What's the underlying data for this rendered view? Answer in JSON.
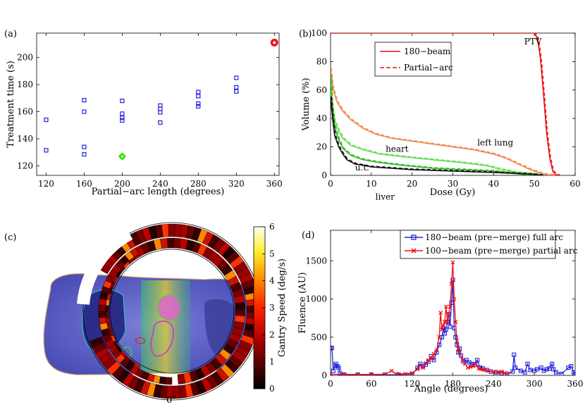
{
  "panels": {
    "a": {
      "label": "(a)"
    },
    "b": {
      "label": "(b)"
    },
    "c": {
      "label": "(c)"
    },
    "d": {
      "label": "(d)"
    }
  },
  "chart_data": [
    {
      "id": "a",
      "type": "scatter",
      "xlabel": "Partial−arc length (degrees)",
      "ylabel": "Treatment time (s)",
      "xlim": [
        110,
        365
      ],
      "ylim": [
        113,
        218
      ],
      "xticks": [
        120,
        160,
        200,
        240,
        280,
        320,
        360
      ],
      "yticks": [
        120,
        140,
        160,
        180,
        200
      ],
      "series": [
        {
          "marker": "square",
          "color": "#2222dd",
          "points": [
            [
              120,
              154
            ],
            [
              120,
              131.5
            ],
            [
              160,
              168.5
            ],
            [
              160,
              160
            ],
            [
              160,
              134
            ],
            [
              160,
              128.5
            ],
            [
              200,
              168
            ],
            [
              200,
              158.5
            ],
            [
              200,
              155.5
            ],
            [
              200,
              153.5
            ],
            [
              240,
              164.5
            ],
            [
              240,
              162
            ],
            [
              240,
              159.5
            ],
            [
              240,
              152
            ],
            [
              280,
              174.5
            ],
            [
              280,
              171.5
            ],
            [
              280,
              166
            ],
            [
              280,
              164
            ],
            [
              320,
              185
            ],
            [
              320,
              178
            ],
            [
              320,
              175
            ]
          ]
        },
        {
          "marker": "diamond",
          "color": "#33dd11",
          "points": [
            [
              200,
              127
            ]
          ]
        },
        {
          "marker": "circle",
          "color": "#ee1111",
          "points": [
            [
              360,
              211
            ]
          ]
        }
      ]
    },
    {
      "id": "b",
      "type": "line",
      "xlabel": "Dose (Gy)",
      "ylabel": "Volume (%)",
      "xlim": [
        0,
        60
      ],
      "ylim": [
        0,
        100
      ],
      "xticks": [
        0,
        10,
        20,
        30,
        40,
        50,
        60
      ],
      "yticks": [
        0,
        20,
        40,
        60,
        80,
        100
      ],
      "legend": {
        "position": "top-left",
        "entries": [
          {
            "label": "180−beam",
            "style": "solid",
            "color": "#ee1111"
          },
          {
            "label": "Partial−arc",
            "style": "dashed",
            "color": "#ee1111"
          }
        ]
      },
      "annotations": [
        {
          "text": "PTV",
          "x": 47.5,
          "y": 92
        },
        {
          "text": "left lung",
          "x": 36,
          "y": 21
        },
        {
          "text": "heart",
          "x": 13.5,
          "y": 16.5
        },
        {
          "text": "u.t.",
          "x": 6,
          "y": 3.5
        },
        {
          "text": "liver",
          "x": 11,
          "y": -17
        }
      ],
      "curves": [
        {
          "name": "PTV",
          "color": "#ee1111",
          "points": [
            [
              0,
              100
            ],
            [
              50,
              100
            ],
            [
              50.8,
              96
            ],
            [
              51.5,
              82
            ],
            [
              52.3,
              55
            ],
            [
              53,
              30
            ],
            [
              53.8,
              12
            ],
            [
              54.5,
              3
            ],
            [
              55.2,
              0.5
            ],
            [
              56,
              0
            ]
          ]
        },
        {
          "name": "left lung",
          "color": "#f08a4b",
          "points": [
            [
              0,
              75
            ],
            [
              0.5,
              62
            ],
            [
              1.5,
              52
            ],
            [
              3,
              45
            ],
            [
              5,
              39
            ],
            [
              8,
              33
            ],
            [
              11,
              29
            ],
            [
              15,
              26
            ],
            [
              20,
              24
            ],
            [
              25,
              22
            ],
            [
              30,
              20
            ],
            [
              35,
              18
            ],
            [
              40,
              15
            ],
            [
              43,
              12
            ],
            [
              46,
              8
            ],
            [
              49,
              4
            ],
            [
              51,
              2
            ],
            [
              53,
              0.5
            ],
            [
              55,
              0
            ]
          ]
        },
        {
          "name": "heart",
          "color": "#66dd55",
          "points": [
            [
              0,
              60
            ],
            [
              0.5,
              45
            ],
            [
              1,
              38
            ],
            [
              2,
              31
            ],
            [
              3,
              26
            ],
            [
              5,
              21
            ],
            [
              8,
              18
            ],
            [
              12,
              15
            ],
            [
              18,
              13
            ],
            [
              25,
              11
            ],
            [
              32,
              9
            ],
            [
              38,
              7
            ],
            [
              42,
              4
            ],
            [
              46,
              2
            ],
            [
              50,
              1
            ],
            [
              52,
              0
            ]
          ]
        },
        {
          "name": "liver",
          "color": "#33bb22",
          "points": [
            [
              0,
              70
            ],
            [
              0.4,
              48
            ],
            [
              1,
              34
            ],
            [
              2,
              25
            ],
            [
              3,
              19
            ],
            [
              5,
              14
            ],
            [
              8,
              11
            ],
            [
              12,
              9
            ],
            [
              18,
              7
            ],
            [
              25,
              5
            ],
            [
              32,
              4
            ],
            [
              40,
              3
            ],
            [
              46,
              1
            ],
            [
              50,
              0
            ]
          ]
        },
        {
          "name": "u.t.",
          "color": "#111111",
          "points": [
            [
              0,
              55
            ],
            [
              0.5,
              40
            ],
            [
              1,
              28
            ],
            [
              2,
              20
            ],
            [
              3,
              15
            ],
            [
              4,
              11
            ],
            [
              6,
              8
            ],
            [
              10,
              6
            ],
            [
              15,
              5
            ],
            [
              20,
              4
            ],
            [
              30,
              3
            ],
            [
              40,
              2
            ],
            [
              48,
              1
            ],
            [
              52,
              0
            ]
          ]
        }
      ]
    },
    {
      "id": "c",
      "type": "heatmap",
      "colorbar_label": "Gantry Speed (deg/s)",
      "colorbar_ticks": [
        0,
        1,
        2,
        3,
        4,
        5,
        6
      ],
      "angle_label": "0",
      "angle_unit": "o"
    },
    {
      "id": "d",
      "type": "line",
      "xlabel": "Angle (degrees)",
      "ylabel": "Fluence (AU)",
      "xlim": [
        0,
        360
      ],
      "ylim": [
        0,
        1900
      ],
      "xticks": [
        0,
        60,
        120,
        180,
        240,
        300,
        360
      ],
      "yticks": [
        0,
        500,
        1000,
        1500
      ],
      "legend": {
        "position": "top-center",
        "entries": [
          {
            "label": "180−beam (pre−merge) full arc",
            "marker": "square",
            "color": "#2222dd"
          },
          {
            "label": "100−beam (pre−merge) partial arc",
            "marker": "x",
            "color": "#ee1111"
          }
        ]
      },
      "series": [
        {
          "name": "180−beam (pre−merge) full arc",
          "color": "#2222dd",
          "marker": "square",
          "points": [
            [
              0,
              350
            ],
            [
              2,
              360
            ],
            [
              4,
              60
            ],
            [
              6,
              130
            ],
            [
              8,
              150
            ],
            [
              10,
              120
            ],
            [
              12,
              100
            ],
            [
              14,
              30
            ],
            [
              20,
              10
            ],
            [
              40,
              10
            ],
            [
              60,
              10
            ],
            [
              80,
              8
            ],
            [
              100,
              10
            ],
            [
              120,
              15
            ],
            [
              128,
              100
            ],
            [
              132,
              150
            ],
            [
              136,
              120
            ],
            [
              140,
              140
            ],
            [
              144,
              180
            ],
            [
              148,
              250
            ],
            [
              152,
              200
            ],
            [
              156,
              300
            ],
            [
              160,
              400
            ],
            [
              164,
              500
            ],
            [
              166,
              620
            ],
            [
              168,
              550
            ],
            [
              170,
              600
            ],
            [
              172,
              700
            ],
            [
              174,
              800
            ],
            [
              176,
              640
            ],
            [
              178,
              950
            ],
            [
              180,
              1250
            ],
            [
              182,
              620
            ],
            [
              184,
              500
            ],
            [
              186,
              400
            ],
            [
              188,
              300
            ],
            [
              190,
              350
            ],
            [
              192,
              260
            ],
            [
              196,
              180
            ],
            [
              200,
              200
            ],
            [
              204,
              170
            ],
            [
              208,
              150
            ],
            [
              212,
              140
            ],
            [
              216,
              200
            ],
            [
              220,
              100
            ],
            [
              224,
              90
            ],
            [
              230,
              70
            ],
            [
              236,
              50
            ],
            [
              244,
              40
            ],
            [
              252,
              30
            ],
            [
              260,
              20
            ],
            [
              268,
              50
            ],
            [
              270,
              270
            ],
            [
              272,
              100
            ],
            [
              280,
              60
            ],
            [
              286,
              40
            ],
            [
              290,
              150
            ],
            [
              294,
              70
            ],
            [
              300,
              60
            ],
            [
              304,
              80
            ],
            [
              310,
              100
            ],
            [
              314,
              60
            ],
            [
              318,
              80
            ],
            [
              322,
              90
            ],
            [
              326,
              150
            ],
            [
              328,
              80
            ],
            [
              332,
              40
            ],
            [
              340,
              20
            ],
            [
              350,
              100
            ],
            [
              354,
              120
            ],
            [
              358,
              40
            ],
            [
              360,
              20
            ]
          ]
        },
        {
          "name": "100−beam (pre−merge) partial arc",
          "color": "#ee1111",
          "marker": "x",
          "points": [
            [
              0,
              15
            ],
            [
              20,
              15
            ],
            [
              40,
              12
            ],
            [
              60,
              12
            ],
            [
              80,
              15
            ],
            [
              90,
              60
            ],
            [
              96,
              20
            ],
            [
              110,
              20
            ],
            [
              120,
              30
            ],
            [
              128,
              80
            ],
            [
              132,
              130
            ],
            [
              136,
              100
            ],
            [
              140,
              160
            ],
            [
              144,
              200
            ],
            [
              148,
              220
            ],
            [
              150,
              230
            ],
            [
              152,
              280
            ],
            [
              156,
              330
            ],
            [
              160,
              500
            ],
            [
              162,
              820
            ],
            [
              164,
              600
            ],
            [
              166,
              650
            ],
            [
              168,
              700
            ],
            [
              170,
              900
            ],
            [
              172,
              700
            ],
            [
              174,
              800
            ],
            [
              176,
              900
            ],
            [
              178,
              1200
            ],
            [
              180,
              1480
            ],
            [
              182,
              1000
            ],
            [
              184,
              700
            ],
            [
              186,
              450
            ],
            [
              188,
              350
            ],
            [
              190,
              300
            ],
            [
              194,
              200
            ],
            [
              198,
              150
            ],
            [
              202,
              100
            ],
            [
              206,
              110
            ],
            [
              210,
              120
            ],
            [
              214,
              150
            ],
            [
              218,
              90
            ],
            [
              222,
              80
            ],
            [
              226,
              70
            ],
            [
              232,
              60
            ],
            [
              240,
              50
            ],
            [
              246,
              40
            ],
            [
              252,
              50
            ],
            [
              256,
              30
            ],
            [
              260,
              15
            ]
          ]
        }
      ]
    }
  ]
}
